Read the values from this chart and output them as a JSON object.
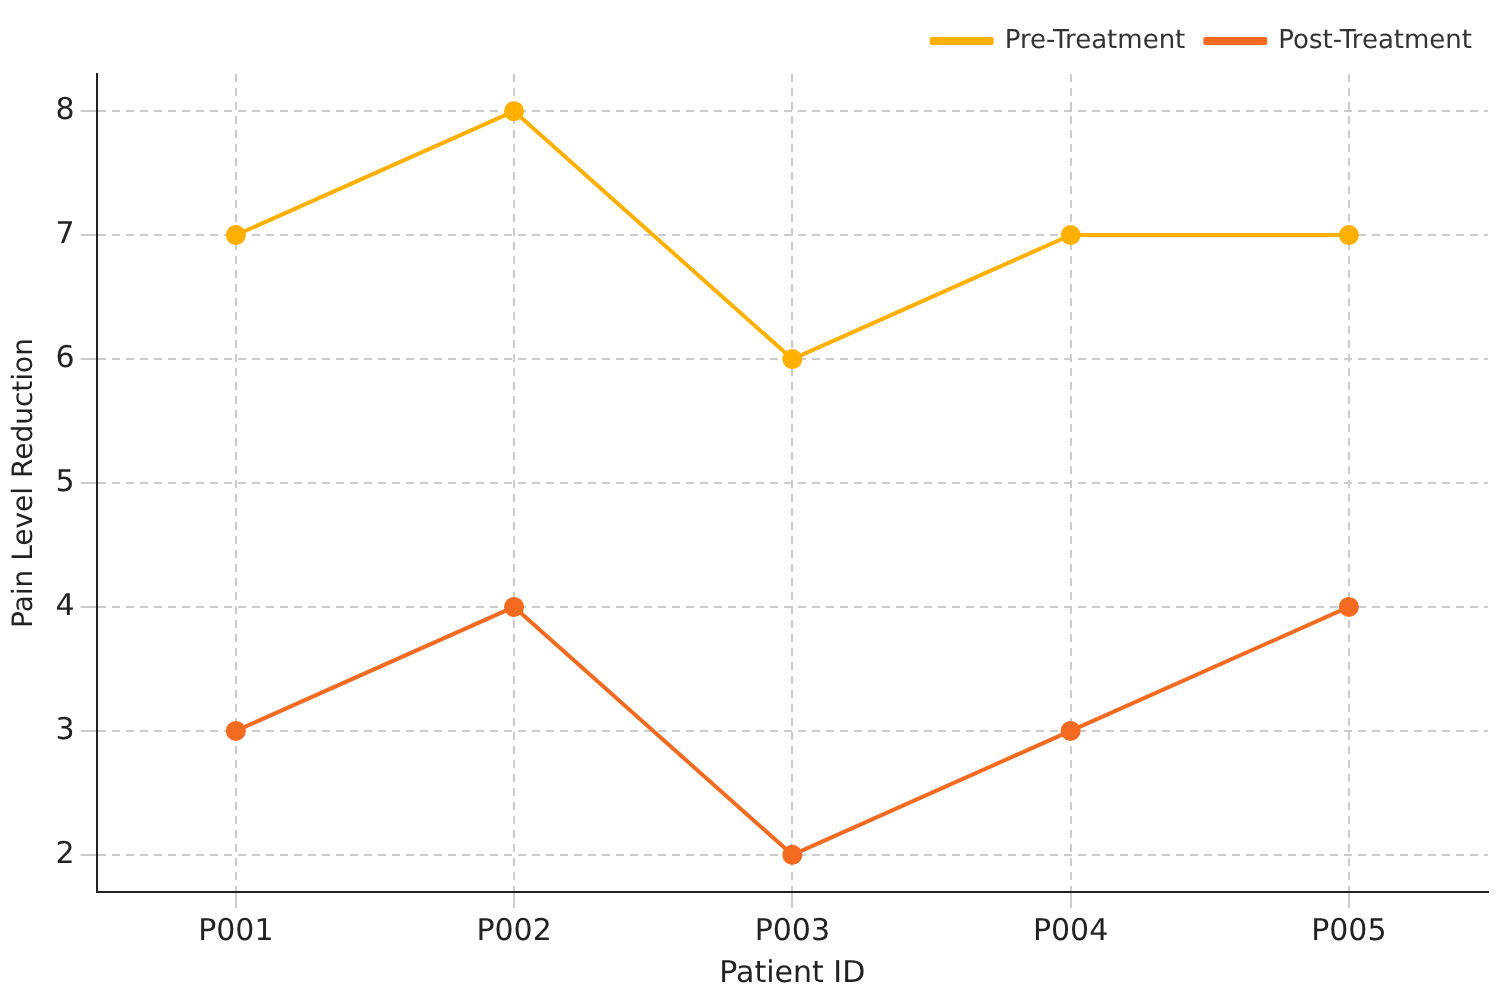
{
  "chart_data": {
    "type": "line",
    "xlabel": "Patient ID",
    "ylabel": "Pain Level Reduction",
    "categories": [
      "P001",
      "P002",
      "P003",
      "P004",
      "P005"
    ],
    "series": [
      {
        "name": "Pre-Treatment",
        "color": "#ffb000",
        "values": [
          7,
          8,
          6,
          7,
          7
        ]
      },
      {
        "name": "Post-Treatment",
        "color": "#f26b21",
        "values": [
          3,
          4,
          2,
          3,
          4
        ]
      }
    ],
    "ylim": [
      1.7,
      8.3
    ],
    "yticks": [
      2,
      3,
      4,
      5,
      6,
      7,
      8
    ],
    "grid": true,
    "legend": "top right",
    "marker": "circle",
    "line_style": "solid"
  }
}
